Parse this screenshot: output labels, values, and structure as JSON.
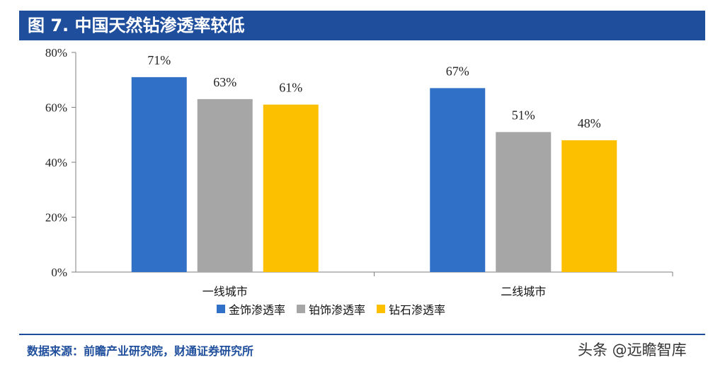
{
  "header": {
    "title": "图 7. 中国天然钻渗透率较低"
  },
  "chart_data": {
    "type": "bar",
    "categories": [
      "一线城市",
      "二线城市"
    ],
    "series": [
      {
        "name": "金饰渗透率",
        "values": [
          71,
          67
        ],
        "color": "#3070c6"
      },
      {
        "name": "铂饰渗透率",
        "values": [
          63,
          51
        ],
        "color": "#a6a6a6"
      },
      {
        "name": "钻石渗透率",
        "values": [
          61,
          48
        ],
        "color": "#fdc000"
      }
    ],
    "y_ticks": [
      "0%",
      "20%",
      "40%",
      "60%",
      "80%"
    ],
    "ylim": [
      0,
      80
    ],
    "data_labels": [
      [
        "71%",
        "63%",
        "61%"
      ],
      [
        "67%",
        "51%",
        "48%"
      ]
    ],
    "legend_position": "bottom",
    "grid": false
  },
  "footer": {
    "source": "数据来源：前瞻产业研究院，财通证券研究所",
    "watermark": "头条 @远瞻智库"
  }
}
